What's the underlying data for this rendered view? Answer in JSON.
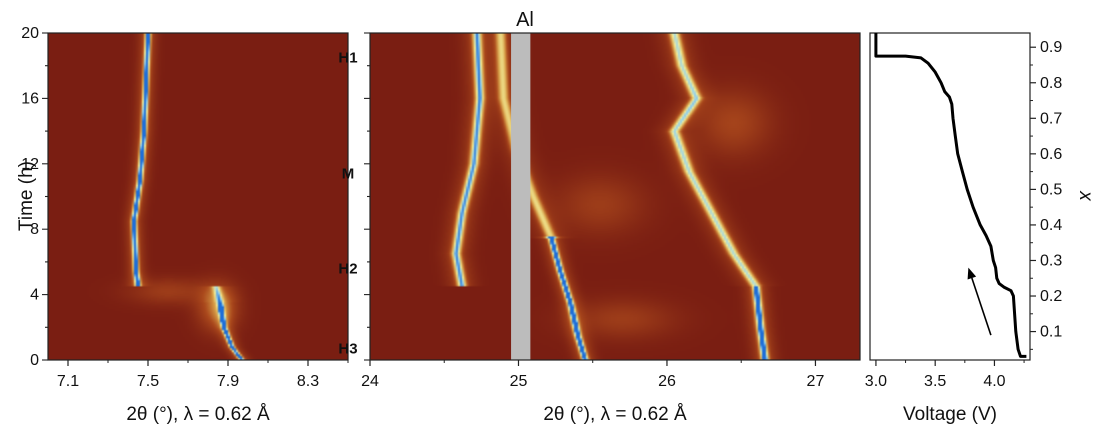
{
  "colors": {
    "background_map": "#7a1e12",
    "peak_mid": "#d9a24a",
    "peak_high": "#f4ef9a",
    "peak_max": "#1f6fd8",
    "al_band": "#bcbcbc",
    "curve": "#000000"
  },
  "chart_data": [
    {
      "type": "heatmap",
      "panel": "left",
      "xlabel": "2θ (°), λ = 0.62 Å",
      "ylabel": "Time (h)",
      "xlim": [
        7.0,
        8.5
      ],
      "ylim": [
        0,
        20
      ],
      "xticks": [
        7.1,
        7.5,
        7.9,
        8.3
      ],
      "xtick_labels": [
        "7.1",
        "7.5",
        "7.9",
        "8.3"
      ],
      "yticks": [
        0,
        4,
        8,
        12,
        16,
        20
      ],
      "ytick_labels": [
        "0",
        "4",
        "8",
        "12",
        "16",
        "20"
      ],
      "ridges": [
        {
          "width": 0.013,
          "peak": 1.0,
          "points": [
            [
              7.97,
              0
            ],
            [
              7.92,
              0.8
            ],
            [
              7.88,
              2.0
            ],
            [
              7.86,
              3.5
            ]
          ]
        },
        {
          "width": 0.02,
          "peak": 0.55,
          "points": [
            [
              7.86,
              3.5
            ],
            [
              7.84,
              4.5
            ]
          ]
        },
        {
          "width": 0.014,
          "peak": 1.0,
          "points": [
            [
              7.45,
              4.5
            ],
            [
              7.44,
              5.5
            ],
            [
              7.43,
              8.5
            ],
            [
              7.46,
              11
            ],
            [
              7.48,
              14
            ],
            [
              7.49,
              17
            ],
            [
              7.5,
              20
            ]
          ]
        }
      ],
      "blobs": [
        {
          "x": 7.85,
          "y": 3.2,
          "sx": 0.1,
          "sy": 1.4,
          "v": 0.35
        },
        {
          "x": 7.6,
          "y": 4.2,
          "sx": 0.2,
          "sy": 0.8,
          "v": 0.18
        }
      ]
    },
    {
      "type": "heatmap",
      "panel": "middle",
      "title": "Al",
      "xlabel": "2θ (°), λ = 0.62 Å",
      "xlim": [
        24,
        27.3
      ],
      "ylim": [
        0,
        20
      ],
      "xticks": [
        24,
        25,
        26,
        27
      ],
      "xtick_labels": [
        "24",
        "25",
        "26",
        "27"
      ],
      "masked_band": [
        24.95,
        25.08
      ],
      "phase_labels": [
        {
          "text": "H1",
          "y": 18.5
        },
        {
          "text": "M",
          "y": 11.4
        },
        {
          "text": "H2",
          "y": 5.6
        },
        {
          "text": "H3",
          "y": 0.7
        }
      ],
      "ridges": [
        {
          "width": 0.022,
          "peak": 1.0,
          "points": [
            [
              25.45,
              0
            ],
            [
              25.4,
              1.5
            ],
            [
              25.35,
              3.5
            ],
            [
              25.28,
              5.5
            ],
            [
              25.22,
              7.5
            ]
          ]
        },
        {
          "width": 0.035,
          "peak": 0.55,
          "points": [
            [
              25.22,
              7.5
            ],
            [
              25.1,
              10
            ],
            [
              24.98,
              13
            ],
            [
              24.9,
              16
            ],
            [
              24.88,
              20
            ]
          ]
        },
        {
          "width": 0.03,
          "peak": 0.8,
          "points": [
            [
              24.62,
              4.5
            ],
            [
              24.58,
              6.5
            ],
            [
              24.62,
              9
            ],
            [
              24.7,
              12
            ],
            [
              24.74,
              16
            ],
            [
              24.72,
              20
            ]
          ]
        },
        {
          "width": 0.025,
          "peak": 1.0,
          "points": [
            [
              26.66,
              0
            ],
            [
              26.63,
              2
            ],
            [
              26.6,
              4.5
            ]
          ]
        },
        {
          "width": 0.035,
          "peak": 0.7,
          "points": [
            [
              26.6,
              4.5
            ],
            [
              26.45,
              6.5
            ],
            [
              26.3,
              9
            ],
            [
              26.15,
              11.5
            ],
            [
              26.05,
              14
            ],
            [
              26.2,
              16
            ],
            [
              26.1,
              18
            ],
            [
              26.05,
              20
            ]
          ]
        }
      ],
      "blobs": [
        {
          "x": 25.7,
          "y": 2.5,
          "sx": 0.35,
          "sy": 1.2,
          "v": 0.18
        },
        {
          "x": 26.45,
          "y": 14.5,
          "sx": 0.25,
          "sy": 2.0,
          "v": 0.22
        },
        {
          "x": 25.55,
          "y": 9.5,
          "sx": 0.3,
          "sy": 1.8,
          "v": 0.18
        }
      ]
    },
    {
      "type": "line",
      "panel": "right",
      "xlabel": "Voltage (V)",
      "ylabel": "x",
      "xlim": [
        2.95,
        4.3
      ],
      "xticks": [
        3.0,
        3.5,
        4.0
      ],
      "xtick_labels": [
        "3.0",
        "3.5",
        "4.0"
      ],
      "xminor": [
        3.25,
        3.75,
        4.25
      ],
      "ylim": [
        0.02,
        0.94
      ],
      "yticks": [
        0.1,
        0.2,
        0.3,
        0.4,
        0.5,
        0.6,
        0.7,
        0.8,
        0.9
      ],
      "ytick_labels": [
        "0.1",
        "0.2",
        "0.3",
        "0.4",
        "0.5",
        "0.6",
        "0.7",
        "0.8",
        "0.9"
      ],
      "curve": [
        [
          4.27,
          0.03
        ],
        [
          4.22,
          0.03
        ],
        [
          4.2,
          0.05
        ],
        [
          4.18,
          0.1
        ],
        [
          4.17,
          0.15
        ],
        [
          4.16,
          0.2
        ],
        [
          4.14,
          0.215
        ],
        [
          4.08,
          0.225
        ],
        [
          4.04,
          0.235
        ],
        [
          4.02,
          0.25
        ],
        [
          4.01,
          0.28
        ],
        [
          3.99,
          0.3
        ],
        [
          3.97,
          0.34
        ],
        [
          3.93,
          0.37
        ],
        [
          3.88,
          0.4
        ],
        [
          3.82,
          0.45
        ],
        [
          3.77,
          0.5
        ],
        [
          3.73,
          0.55
        ],
        [
          3.69,
          0.6
        ],
        [
          3.67,
          0.65
        ],
        [
          3.65,
          0.7
        ],
        [
          3.64,
          0.74
        ],
        [
          3.62,
          0.76
        ],
        [
          3.58,
          0.775
        ],
        [
          3.55,
          0.8
        ],
        [
          3.5,
          0.83
        ],
        [
          3.44,
          0.855
        ],
        [
          3.38,
          0.87
        ],
        [
          3.25,
          0.875
        ],
        [
          3.1,
          0.875
        ],
        [
          3.0,
          0.875
        ],
        [
          3.0,
          0.94
        ]
      ],
      "arrow": {
        "from": [
          3.97,
          0.09
        ],
        "to": [
          3.78,
          0.28
        ]
      }
    }
  ]
}
